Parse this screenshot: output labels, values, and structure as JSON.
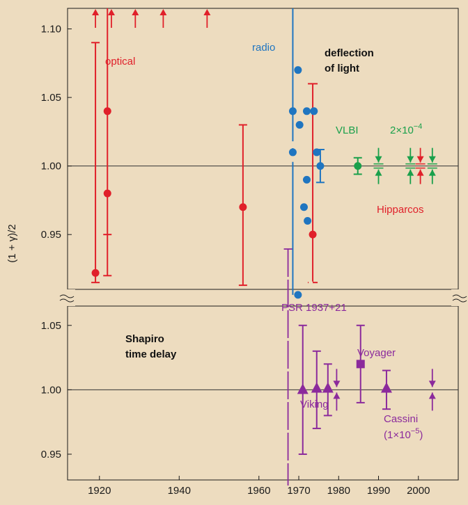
{
  "chart_data": {
    "type": "scatter",
    "ylabel": "(1 + γ)/2",
    "xlim": [
      1912,
      2010
    ],
    "x_ticks": [
      1920,
      1940,
      1960,
      1970,
      1980,
      1990,
      2000
    ],
    "colors": {
      "optical": "#e0202a",
      "radio": "#1f75c0",
      "vlbi": "#1aa04b",
      "hipparcos": "#e0202a",
      "shapiro": "#8b2a9c",
      "background": "#eddcbf"
    },
    "panels": [
      {
        "id": "deflection",
        "title_line1": "deflection",
        "title_line2": "of light",
        "ylim": [
          0.91,
          1.115
        ],
        "y_ticks": [
          "0.95",
          "1.00",
          "1.05",
          "1.10"
        ],
        "reference": 1.0,
        "labels": {
          "optical": "optical",
          "radio": "radio",
          "vlbi": "VLBI",
          "hipparcos": "Hipparcos",
          "precision_base": "2×10",
          "precision_exp": "−4"
        },
        "optical_points": [
          {
            "x": 1919,
            "y": 0.922,
            "low": 0.915,
            "high": 1.09
          },
          {
            "x": 1922,
            "y": 1.04,
            "low": 0.92,
            "high": 1.115
          },
          {
            "x": 1922,
            "y": 0.98,
            "low": 0.92,
            "high": 1.115
          },
          {
            "x": 1956,
            "y": 0.97,
            "low": 0.913,
            "high": 1.03
          },
          {
            "x": 1973.5,
            "y": 0.95,
            "low": 0.915,
            "high": 1.06
          }
        ],
        "optical_arrows": [
          1919,
          1923,
          1929,
          1936,
          1947
        ],
        "radio_points": [
          {
            "x": 1968.5,
            "y": 1.04
          },
          {
            "x": 1968.5,
            "y": 1.01
          },
          {
            "x": 1969.8,
            "y": 1.07
          },
          {
            "x": 1970.2,
            "y": 1.03
          },
          {
            "x": 1971.3,
            "y": 0.97
          },
          {
            "x": 1972,
            "y": 1.04
          },
          {
            "x": 1972,
            "y": 0.99
          },
          {
            "x": 1972.2,
            "y": 0.96
          },
          {
            "x": 1973.8,
            "y": 1.04
          },
          {
            "x": 1974.5,
            "y": 1.01
          },
          {
            "x": 1975.4,
            "y": 1.0,
            "low": 0.988,
            "high": 1.012
          },
          {
            "x": 1969.8,
            "y": 0.906
          }
        ],
        "vlbi_points": [
          {
            "x": 1984.8,
            "y": 1.0,
            "low": 0.994,
            "high": 1.006
          }
        ],
        "vlbi_limits": [
          1990,
          1998,
          2003.5
        ],
        "hipparcos_limit": 2000.5
      },
      {
        "id": "shapiro",
        "title_line1": "Shapiro",
        "title_line2": "time delay",
        "ylim": [
          0.93,
          1.065
        ],
        "y_ticks": [
          "0.95",
          "1.00",
          "1.05"
        ],
        "reference": 1.0,
        "labels": {
          "psr": "PSR 1937+21",
          "voyager": "Voyager",
          "viking": "Viking",
          "cassini": "Cassini",
          "cassini_precision_base": "(1×10",
          "cassini_precision_exp": "−5",
          "cassini_precision_close": ")"
        },
        "triangle_points": [
          {
            "x": 1971,
            "y": 1.0,
            "low": 0.95,
            "high": 1.05
          },
          {
            "x": 1974.5,
            "y": 1.001,
            "low": 0.97,
            "high": 1.03
          },
          {
            "x": 1977.3,
            "y": 1.001,
            "low": 0.98,
            "high": 1.02
          },
          {
            "x": 1992,
            "y": 1.001,
            "low": 0.985,
            "high": 1.015
          }
        ],
        "square_points": [
          {
            "x": 1985.5,
            "y": 1.02,
            "low": 0.99,
            "high": 1.05
          }
        ],
        "limit_arrows": [
          1979.5,
          2003.5
        ],
        "long_error_bar": {
          "x": 1967.3,
          "low": 0.93,
          "high": 1.065
        }
      }
    ]
  }
}
